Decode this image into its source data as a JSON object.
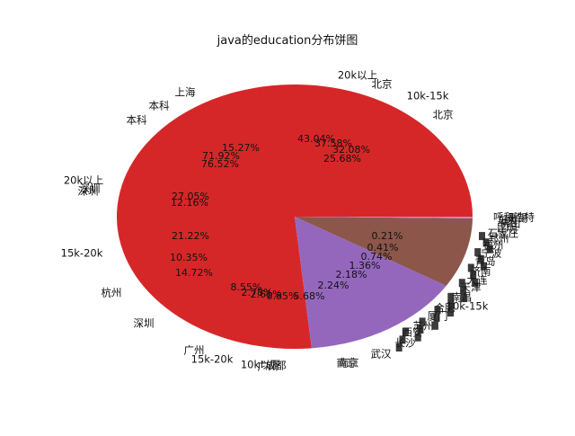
{
  "chart_data": {
    "type": "pie",
    "title": "java的education分布饼图",
    "colors": {
      "red": "#d62728",
      "purple": "#9467bd",
      "brown": "#8c564b",
      "pink": "#e377c2",
      "gray": "#7f7f7f"
    },
    "slices": [
      {
        "value": 76.52,
        "color": "#d62728"
      },
      {
        "value": 14.72,
        "color": "#9467bd"
      },
      {
        "value": 8.55,
        "color": "#8c564b"
      },
      {
        "value": 0.21,
        "color": "#e377c2"
      }
    ],
    "labels": [
      "20k以上",
      "北京",
      "10k-15k",
      "北京",
      "上海",
      "本科",
      "本科",
      "20k以上",
      "深圳",
      "深圳",
      "15k-20k",
      "杭州",
      "深圳",
      "广州",
      "15k-20k",
      "10k以下",
      "广州",
      "成都",
      "南京",
      "南京",
      "武汉",
      "长沙",
      "西安",
      "苏州",
      "厦门",
      "合肥",
      "10k-15k",
      "南昌",
      "天津",
      "大连",
      "济南",
      "青岛",
      "宁波",
      "福州",
      "郑州",
      "石家庄",
      "昆明",
      "佛山",
      "东莞",
      "无锡",
      "呼和浩特"
    ],
    "pct_labels": [
      "43.04%",
      "37.58%",
      "32.08%",
      "25.68%",
      "15.27%",
      "71.92%",
      "76.52%",
      "27.05%",
      "12.16%",
      "21.22%",
      "10.35%",
      "14.72%",
      "8.55%",
      "2.78%",
      "2.61%",
      "0.85%",
      "5.68%",
      "2.24%",
      "2.18%",
      "1.36%",
      "0.74%",
      "0.41%",
      "0.21%"
    ]
  }
}
